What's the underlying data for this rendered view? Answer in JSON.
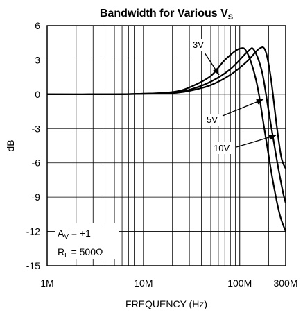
{
  "chart_data": {
    "type": "line",
    "title": "Bandwidth for Various V",
    "title_subscript": "S",
    "xlabel": "FREQUENCY (Hz)",
    "ylabel": "dB",
    "x_scale": "log",
    "xlim": [
      1000000,
      300000000
    ],
    "ylim": [
      -15,
      6
    ],
    "grid": true,
    "x_ticks": [
      {
        "value": 1000000,
        "label": "1M"
      },
      {
        "value": 10000000,
        "label": "10M"
      },
      {
        "value": 100000000,
        "label": "100M"
      },
      {
        "value": 300000000,
        "label": "300M"
      }
    ],
    "y_ticks": [
      {
        "value": 6,
        "label": "6"
      },
      {
        "value": 3,
        "label": "3"
      },
      {
        "value": 0,
        "label": "0"
      },
      {
        "value": -3,
        "label": "-3"
      },
      {
        "value": -6,
        "label": "-6"
      },
      {
        "value": -9,
        "label": "-9"
      },
      {
        "value": -12,
        "label": "-12"
      },
      {
        "value": -15,
        "label": "-15"
      }
    ],
    "series": [
      {
        "name": "3V",
        "x": [
          1000000,
          5000000,
          10000000,
          20000000,
          30000000,
          50000000,
          70000000,
          100000000,
          120000000,
          150000000,
          180000000,
          220000000,
          260000000,
          300000000
        ],
        "y": [
          0,
          0,
          0.05,
          0.2,
          0.6,
          1.6,
          3.0,
          4.0,
          3.6,
          1.0,
          -3.0,
          -7.5,
          -10.5,
          -12.0
        ]
      },
      {
        "name": "5V",
        "x": [
          1000000,
          5000000,
          10000000,
          20000000,
          30000000,
          50000000,
          80000000,
          120000000,
          140000000,
          170000000,
          200000000,
          240000000,
          280000000,
          300000000
        ],
        "y": [
          0,
          0,
          0.05,
          0.15,
          0.4,
          1.1,
          2.2,
          3.7,
          3.9,
          2.0,
          -1.5,
          -5.5,
          -8.5,
          -9.5
        ]
      },
      {
        "name": "10V",
        "x": [
          1000000,
          5000000,
          10000000,
          20000000,
          30000000,
          50000000,
          80000000,
          120000000,
          160000000,
          185000000,
          210000000,
          240000000,
          270000000,
          300000000
        ],
        "y": [
          0,
          0,
          0.05,
          0.1,
          0.3,
          0.8,
          1.7,
          2.9,
          4.0,
          3.8,
          1.5,
          -2.5,
          -5.5,
          -6.5
        ]
      }
    ],
    "annotations": {
      "av_label": "A",
      "av_sub": "V",
      "av_value": " = +1",
      "rl_label": "R",
      "rl_sub": "L",
      "rl_value": " = 500Ω",
      "label_3v": "3V",
      "label_5v": "5V",
      "label_10v": "10V"
    }
  }
}
